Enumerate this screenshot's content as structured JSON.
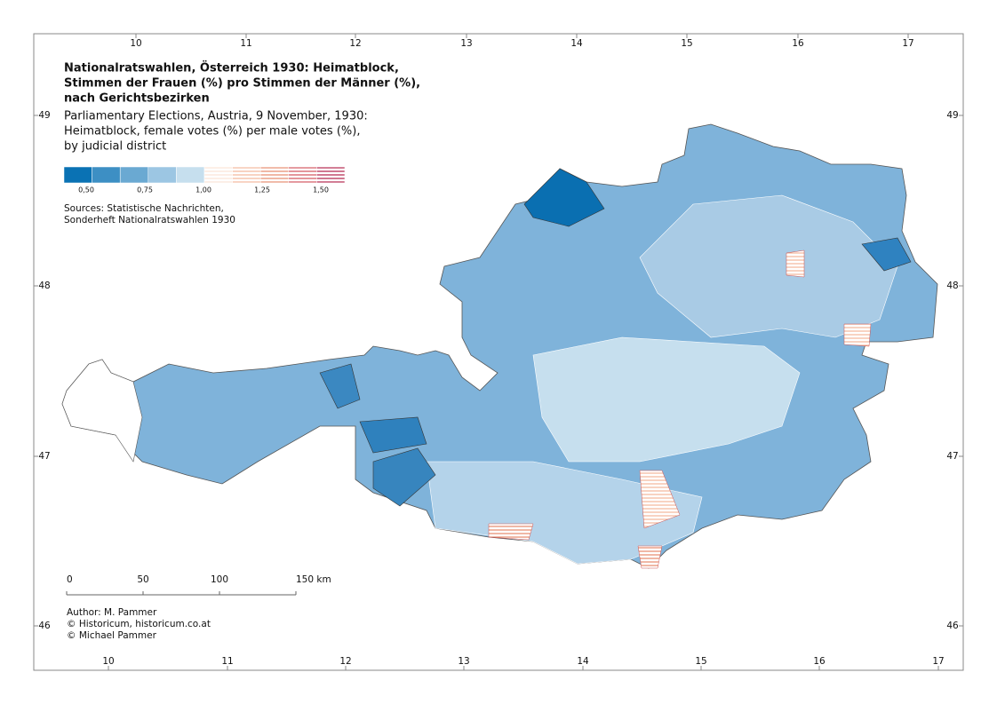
{
  "title": [
    "Nationalratswahlen, Österreich 1930: Heimatblock,",
    "Stimmen der Frauen (%) pro Stimmen der Männer (%),",
    "nach Gerichtsbezirken"
  ],
  "subtitle": [
    "Parliamentary Elections, Austria, 9 November, 1930:",
    "Heimatblock, female votes (%) per male votes (%),",
    "by judicial district"
  ],
  "legend": {
    "swatches": [
      "#0a72b4",
      "#3d8fc4",
      "#6aa9d2",
      "#9cc6e3",
      "#c6dfee",
      "#fbe3d6",
      "#f4b69a",
      "#e68a6c",
      "#d2515a",
      "#b21f48"
    ],
    "labels": [
      "0,50",
      "0,75",
      "1,00",
      "1,25",
      "1,50"
    ]
  },
  "sources": [
    "Sources: Statistische Nachrichten,",
    "Sonderheft Nationalratswahlen 1930"
  ],
  "scale": [
    "0",
    "50",
    "100",
    "150 km"
  ],
  "author": [
    "Author: M. Pammer",
    "© Historicum, historicum.co.at",
    "© Michael Pammer"
  ],
  "graticule": {
    "top": [
      "10",
      "11",
      "12",
      "13",
      "14",
      "15",
      "16",
      "17"
    ],
    "bottom": [
      "10",
      "11",
      "12",
      "13",
      "14",
      "15",
      "16",
      "17"
    ],
    "left": [
      "49",
      "48",
      "47",
      "46"
    ],
    "right": [
      "49",
      "48",
      "47",
      "46"
    ]
  }
}
